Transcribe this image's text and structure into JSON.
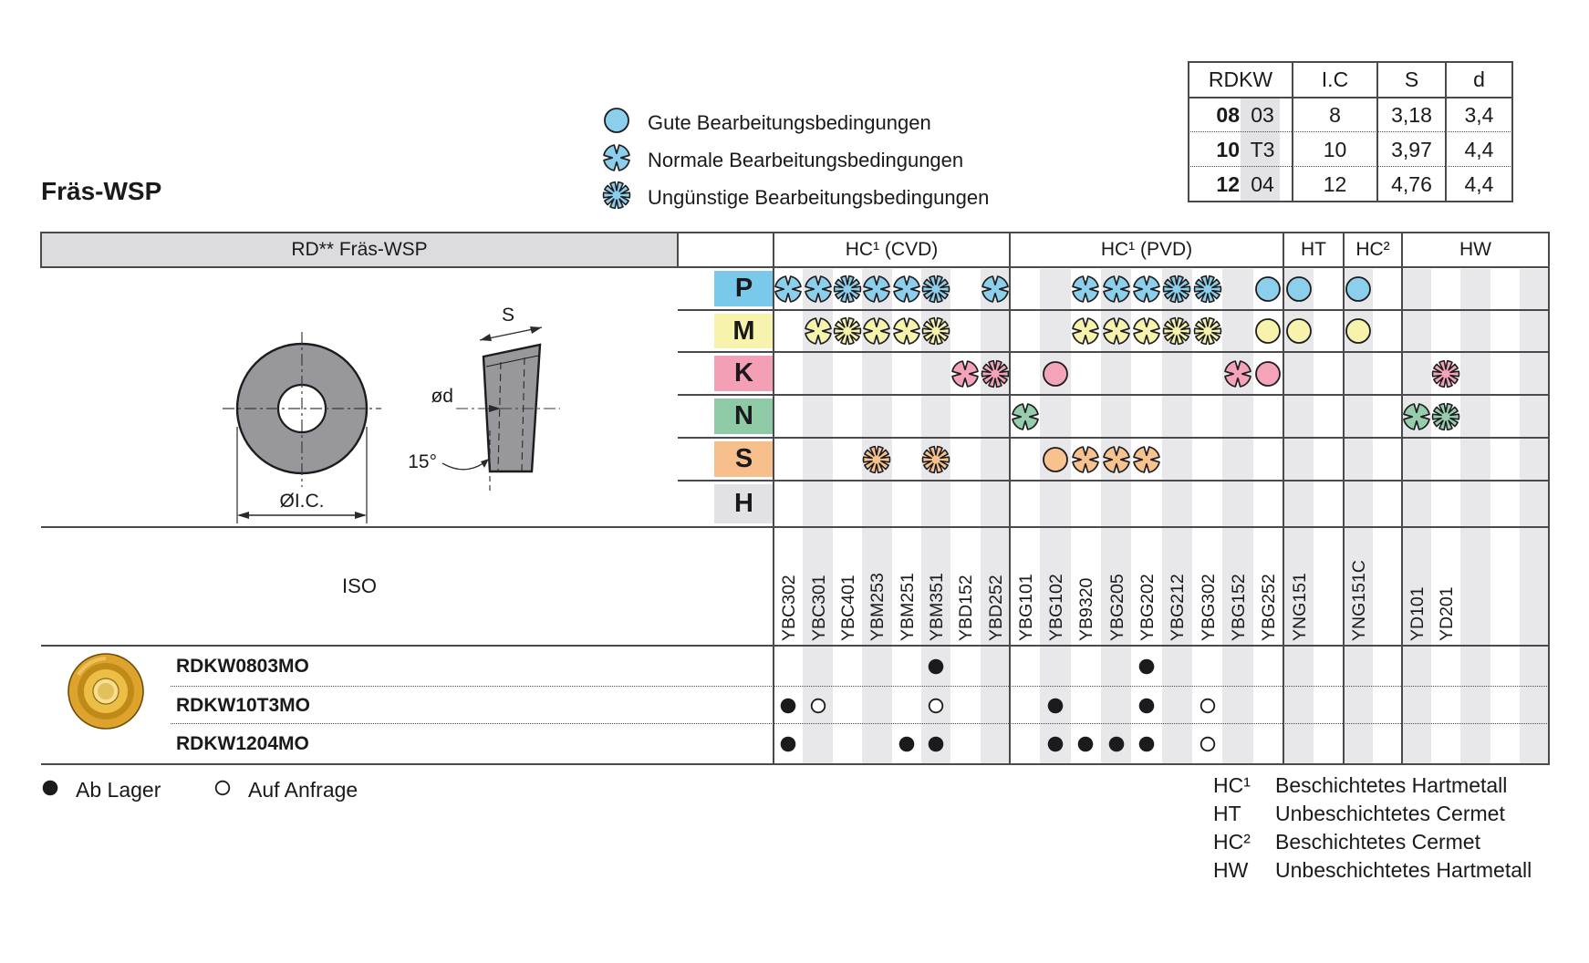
{
  "title": "Fräs-WSP",
  "legend": [
    {
      "symbol": "good",
      "label": "Gute Bearbeitungsbedingungen"
    },
    {
      "symbol": "normal",
      "label": "Normale Bearbeitungsbedingungen"
    },
    {
      "symbol": "unfavorable",
      "label": "Ungünstige Bearbeitungsbedingungen"
    }
  ],
  "size_table": {
    "columns": [
      "RDKW",
      "I.C",
      "S",
      "d"
    ],
    "rows": [
      {
        "rdkw_bold": "08",
        "rdkw_rest": "03",
        "ic": "8",
        "s": "3,18",
        "d": "3,4"
      },
      {
        "rdkw_bold": "10",
        "rdkw_rest": "T3",
        "ic": "10",
        "s": "3,97",
        "d": "4,4"
      },
      {
        "rdkw_bold": "12",
        "rdkw_rest": "04",
        "ic": "12",
        "s": "4,76",
        "d": "4,4"
      }
    ]
  },
  "main_table": {
    "corner_label": "RD** Fräs-WSP",
    "iso_label": "ISO",
    "groups": [
      {
        "label": "HC¹ (CVD)",
        "grades": [
          "YBC302",
          "YBC301",
          "YBC401",
          "YBM253",
          "YBM251",
          "YBM351",
          "YBD152",
          "YBD252"
        ]
      },
      {
        "label": "HC¹ (PVD)",
        "grades": [
          "YBG101",
          "YBG102",
          "YB9320",
          "YBG205",
          "YBG202",
          "YBG212",
          "YBG302",
          "YBG152",
          "YBG252"
        ]
      },
      {
        "label": "HT",
        "grades": [
          "YNG151",
          ""
        ]
      },
      {
        "label": "HC²",
        "grades": [
          "YNG151C",
          ""
        ]
      },
      {
        "label": "HW",
        "grades": [
          "YD101",
          "YD201",
          "",
          "",
          ""
        ]
      }
    ],
    "rows": [
      {
        "letter": "P",
        "cell_color": "#7AC8EA",
        "symbol_color": "#8CCFEC",
        "cells": {
          "YBC302": "N",
          "YBC301": "N",
          "YBC401": "U",
          "YBM253": "N",
          "YBM251": "N",
          "YBM351": "U",
          "YBD252": "N",
          "YB9320": "N",
          "YBG205": "N",
          "YBG202": "N",
          "YBG212": "U",
          "YBG302": "U",
          "YBG252": "G",
          "YNG151": "G",
          "YNG151C": "G"
        }
      },
      {
        "letter": "M",
        "cell_color": "#F7F3AC",
        "symbol_color": "#F7F2AC",
        "cells": {
          "YBC301": "N",
          "YBC401": "U",
          "YBM253": "N",
          "YBM251": "N",
          "YBM351": "U",
          "YB9320": "N",
          "YBG205": "N",
          "YBG202": "N",
          "YBG212": "U",
          "YBG302": "U",
          "YBG252": "G",
          "YNG151": "G",
          "YNG151C": "G"
        }
      },
      {
        "letter": "K",
        "cell_color": "#F39FB5",
        "symbol_color": "#F5A3B8",
        "cells": {
          "YBD152": "N",
          "YBD252": "U",
          "YBG102": "G",
          "YBG152": "N",
          "YBG252": "G",
          "YD201": "U"
        }
      },
      {
        "letter": "N",
        "cell_color": "#8FCAA7",
        "symbol_color": "#96CEAC",
        "cells": {
          "YBG101": "N",
          "YD101": "N",
          "YD201": "U"
        }
      },
      {
        "letter": "S",
        "cell_color": "#F7BF8C",
        "symbol_color": "#F8C28F",
        "cells": {
          "YBM253": "U",
          "YBM351": "U",
          "YBG102": "G",
          "YB9320": "N",
          "YBG205": "N",
          "YBG202": "N"
        }
      },
      {
        "letter": "H",
        "cell_color": "#E2E2E4",
        "symbol_color": "#cccccc",
        "cells": {}
      }
    ],
    "products": [
      {
        "name": "RDKW0803MO",
        "dots": {
          "YBM351": "filled",
          "YBG202": "filled"
        }
      },
      {
        "name": "RDKW10T3MO",
        "dots": {
          "YBC302": "filled",
          "YBC301": "open",
          "YBM351": "open",
          "YBG102": "filled",
          "YBG202": "filled",
          "YBG302": "open"
        }
      },
      {
        "name": "RDKW1204MO",
        "dots": {
          "YBC302": "filled",
          "YBM251": "filled",
          "YBM351": "filled",
          "YBG102": "filled",
          "YB9320": "filled",
          "YBG205": "filled",
          "YBG202": "filled",
          "YBG302": "open"
        }
      }
    ]
  },
  "footer": {
    "stock_legend": [
      {
        "dot": "filled",
        "label": "Ab Lager"
      },
      {
        "dot": "open",
        "label": "Auf Anfrage"
      }
    ],
    "abbreviations": [
      {
        "abbr": "HC¹",
        "meaning": "Beschichtetes Hartmetall"
      },
      {
        "abbr": "HT",
        "meaning": "Unbeschichtetes Cermet"
      },
      {
        "abbr": "HC²",
        "meaning": "Beschichtetes Cermet"
      },
      {
        "abbr": "HW",
        "meaning": "Unbeschichtetes Hartmetall"
      }
    ]
  },
  "drawing": {
    "labels": {
      "s": "S",
      "d": "ød",
      "angle": "15°",
      "ic": "ØI.C."
    }
  },
  "colors": {
    "stripe": "#E8E8EA",
    "border": "#4a4a4c",
    "legend_blue": "#8CCFEC"
  }
}
